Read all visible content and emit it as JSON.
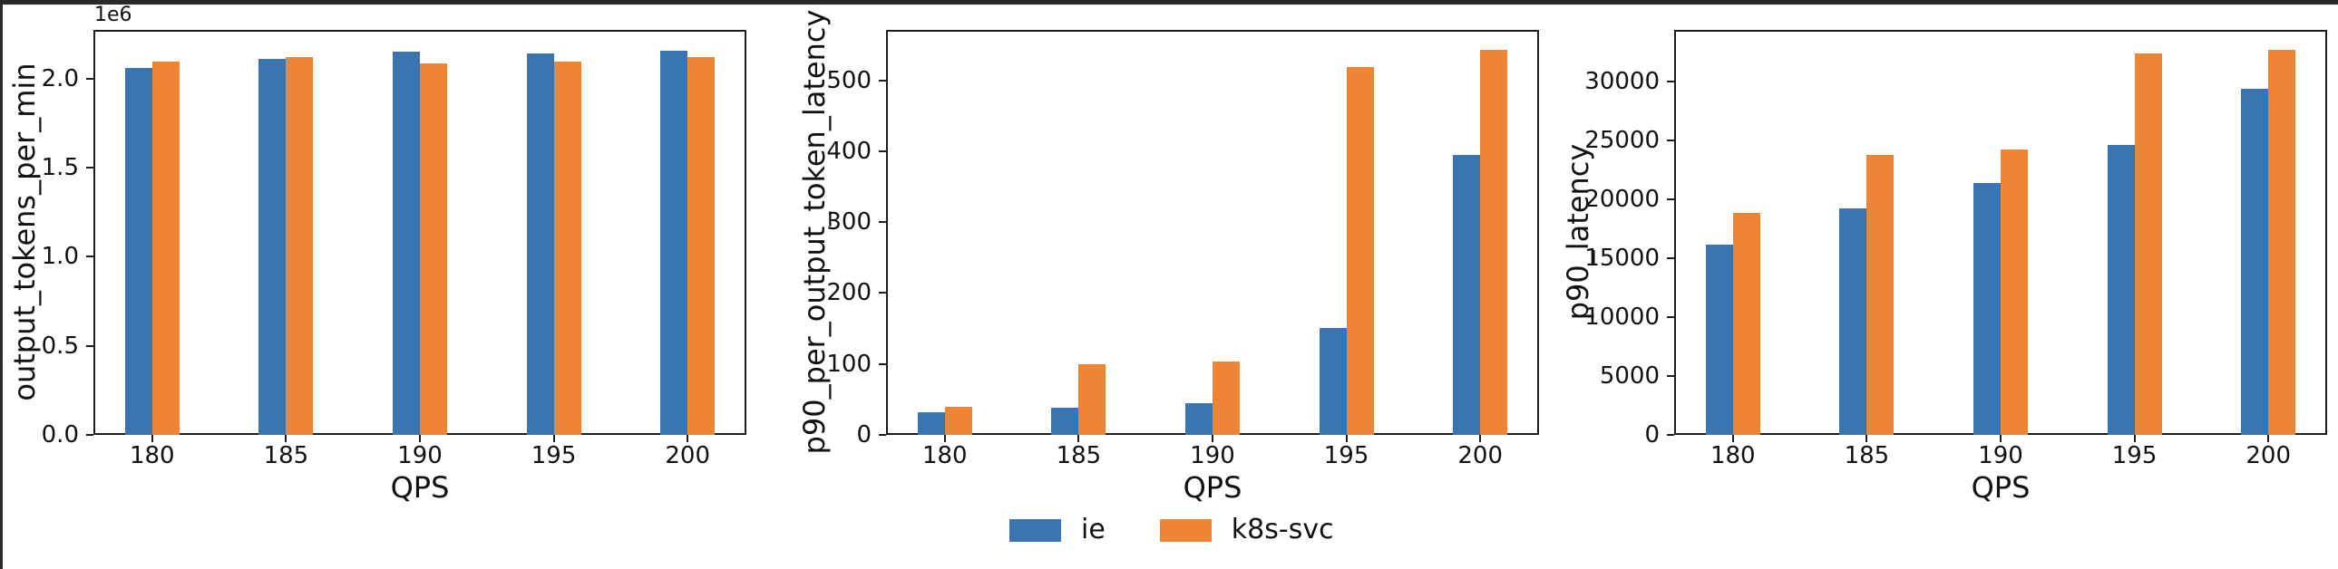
{
  "frame": {
    "edge_color": "#2a2a2a"
  },
  "colors": {
    "ie": "#3b75af",
    "k8s_svc": "#ee8535",
    "spine": "#1c1c1c",
    "text": "#111111"
  },
  "legend": {
    "position": "bottom-center",
    "items": [
      {
        "label": "ie",
        "color": "#3b75af"
      },
      {
        "label": "k8s-svc",
        "color": "#ee8535"
      }
    ]
  },
  "chart_data": [
    {
      "type": "bar",
      "title": "",
      "categories": [
        "180",
        "185",
        "190",
        "195",
        "200"
      ],
      "xlabel": "QPS",
      "ylabel": "output_tokens_per_min",
      "offset_label": "1e6",
      "ylim": [
        0,
        2273000
      ],
      "grid": false,
      "yticks": [
        {
          "value": 0,
          "label": "0.0"
        },
        {
          "value": 500000,
          "label": "0.5"
        },
        {
          "value": 1000000,
          "label": "1.0"
        },
        {
          "value": 1500000,
          "label": "1.5"
        },
        {
          "value": 2000000,
          "label": "2.0"
        }
      ],
      "series": [
        {
          "name": "ie",
          "values": [
            2060000,
            2111000,
            2150000,
            2140000,
            2158000
          ]
        },
        {
          "name": "k8s-svc",
          "values": [
            2094000,
            2119000,
            2085000,
            2097000,
            2122000
          ]
        }
      ]
    },
    {
      "type": "bar",
      "title": "",
      "categories": [
        "180",
        "185",
        "190",
        "195",
        "200"
      ],
      "xlabel": "QPS",
      "ylabel": "p90_per_output_token_latency",
      "offset_label": "",
      "ylim": [
        0,
        571
      ],
      "grid": false,
      "yticks": [
        {
          "value": 0,
          "label": "0"
        },
        {
          "value": 100,
          "label": "100"
        },
        {
          "value": 200,
          "label": "200"
        },
        {
          "value": 300,
          "label": "300"
        },
        {
          "value": 400,
          "label": "400"
        },
        {
          "value": 500,
          "label": "500"
        }
      ],
      "series": [
        {
          "name": "ie",
          "values": [
            32,
            38,
            45,
            151,
            395
          ]
        },
        {
          "name": "k8s-svc",
          "values": [
            40,
            100,
            103,
            519,
            543
          ]
        }
      ]
    },
    {
      "type": "bar",
      "title": "",
      "categories": [
        "180",
        "185",
        "190",
        "195",
        "200"
      ],
      "xlabel": "QPS",
      "ylabel": "p90_latency",
      "offset_label": "",
      "ylim": [
        0,
        34375
      ],
      "grid": false,
      "yticks": [
        {
          "value": 0,
          "label": "0"
        },
        {
          "value": 5000,
          "label": "5000"
        },
        {
          "value": 10000,
          "label": "10000"
        },
        {
          "value": 15000,
          "label": "15000"
        },
        {
          "value": 20000,
          "label": "20000"
        },
        {
          "value": 25000,
          "label": "25000"
        },
        {
          "value": 30000,
          "label": "30000"
        }
      ],
      "series": [
        {
          "name": "ie",
          "values": [
            16150,
            19200,
            21350,
            24600,
            29400
          ]
        },
        {
          "name": "k8s-svc",
          "values": [
            18850,
            23750,
            24200,
            32350,
            32700
          ]
        }
      ]
    }
  ]
}
